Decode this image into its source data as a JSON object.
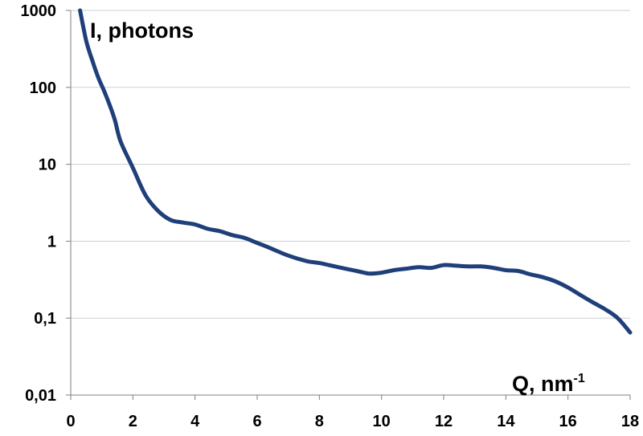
{
  "chart_data": {
    "type": "line",
    "title": "",
    "ylabel": "I, photons",
    "xlabel_main": "Q, nm",
    "xlabel_sup": "-1",
    "y_scale": "log",
    "x_range": [
      0,
      18
    ],
    "y_range": [
      0.01,
      1000
    ],
    "x_ticks": [
      0,
      2,
      4,
      6,
      8,
      10,
      12,
      14,
      16,
      18
    ],
    "x_tick_labels": [
      "0",
      "2",
      "4",
      "6",
      "8",
      "10",
      "12",
      "14",
      "16",
      "18"
    ],
    "y_ticks": [
      0.01,
      0.1,
      1,
      10,
      100,
      1000
    ],
    "y_tick_labels": [
      "0,01",
      "0,1",
      "1",
      "10",
      "100",
      "1000"
    ],
    "grid": "horizontal",
    "legend": "none",
    "colors": {
      "line": "#1f3f7a",
      "grid": "#cfcfcf",
      "axis": "#7f7f7f"
    },
    "series": [
      {
        "x": [
          0.3,
          0.5,
          0.7,
          0.9,
          1.1,
          1.4,
          1.6,
          2.0,
          2.4,
          2.8,
          3.2,
          3.6,
          4.0,
          4.4,
          4.8,
          5.2,
          5.6,
          6.0,
          6.4,
          7.0,
          7.6,
          8.0,
          8.6,
          9.2,
          9.6,
          10.0,
          10.4,
          10.8,
          11.2,
          11.6,
          12.0,
          12.4,
          12.8,
          13.2,
          13.6,
          14.0,
          14.4,
          14.8,
          15.2,
          15.6,
          16.0,
          16.4,
          16.8,
          17.2,
          17.6,
          18.0
        ],
        "y": [
          1000,
          400,
          220,
          130,
          85,
          40,
          20,
          9,
          4,
          2.5,
          1.9,
          1.75,
          1.65,
          1.45,
          1.35,
          1.2,
          1.1,
          0.95,
          0.82,
          0.65,
          0.55,
          0.52,
          0.46,
          0.41,
          0.38,
          0.39,
          0.42,
          0.44,
          0.46,
          0.45,
          0.49,
          0.48,
          0.47,
          0.47,
          0.45,
          0.42,
          0.41,
          0.37,
          0.34,
          0.3,
          0.25,
          0.2,
          0.16,
          0.13,
          0.1,
          0.065
        ]
      }
    ]
  }
}
